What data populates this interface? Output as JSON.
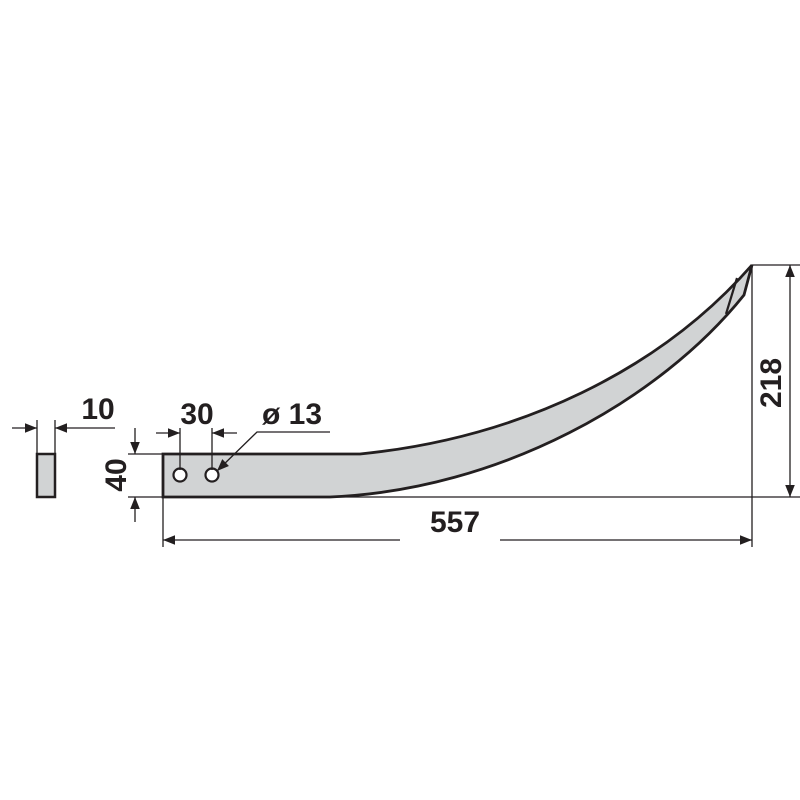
{
  "dimensions": {
    "thickness": "10",
    "hole_spacing": "30",
    "hole_diameter": "ø 13",
    "width": "40",
    "length": "557",
    "height": "218"
  },
  "colors": {
    "part_fill": "#d1d3d4",
    "line": "#231f20"
  }
}
